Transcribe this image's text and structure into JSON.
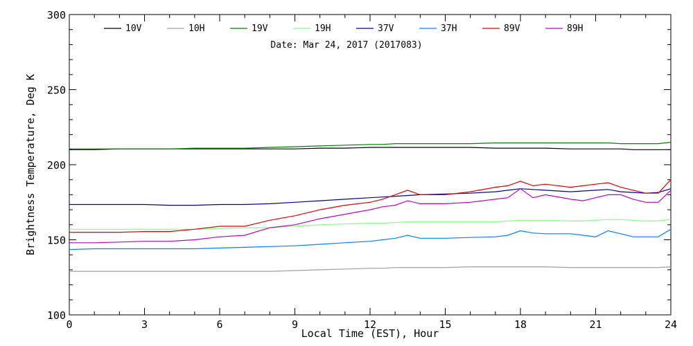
{
  "chart_data": {
    "type": "line",
    "title": "",
    "date_text": "Date: Mar 24, 2017 (2017083)",
    "xlabel": "Local Time (EST), Hour",
    "ylabel": "Brightness Temperature, Deg K",
    "xlim": [
      0,
      24
    ],
    "ylim": [
      100,
      300
    ],
    "x_ticks": [
      0,
      3,
      6,
      9,
      12,
      15,
      18,
      21,
      24
    ],
    "y_ticks": [
      100,
      150,
      200,
      250,
      300
    ],
    "grid": false,
    "legend_position": "top",
    "x": [
      0,
      1,
      2,
      3,
      4,
      5,
      6,
      7,
      8,
      9,
      10,
      11,
      12,
      12.5,
      13,
      13.5,
      14,
      15,
      16,
      17,
      17.5,
      18,
      18.5,
      19,
      20,
      20.5,
      21,
      21.5,
      22,
      22.5,
      23,
      23.5,
      24
    ],
    "series": [
      {
        "name": "10V",
        "color": "#000000",
        "values": [
          210,
          210,
          210.5,
          210.5,
          210.5,
          210.5,
          210.5,
          210.5,
          210.5,
          210.5,
          211,
          211,
          211.5,
          211.5,
          211.5,
          211.5,
          211.5,
          211.5,
          211.5,
          211,
          211,
          211,
          211,
          211,
          210.5,
          210.5,
          210.5,
          210.5,
          210.5,
          210,
          210,
          210,
          210
        ]
      },
      {
        "name": "10H",
        "color": "#a0a0a0",
        "values": [
          129,
          129,
          129,
          129,
          129,
          129,
          129,
          129,
          129,
          129.5,
          130,
          130.5,
          131,
          131,
          131.5,
          131.5,
          131.5,
          131.5,
          132,
          132,
          132,
          132,
          132,
          132,
          131.5,
          131.5,
          131.5,
          131.5,
          131.5,
          131.5,
          131.5,
          131.5,
          132
        ]
      },
      {
        "name": "19V",
        "color": "#008000",
        "values": [
          210.5,
          210.5,
          210.5,
          210.5,
          210.5,
          211,
          211,
          211,
          211.5,
          212,
          212.5,
          213,
          213.5,
          213.5,
          214,
          214,
          214,
          214,
          214,
          214.5,
          214.5,
          214.5,
          214.5,
          214.5,
          214.5,
          214.5,
          214.5,
          214.5,
          214,
          214,
          214,
          214,
          215
        ]
      },
      {
        "name": "19H",
        "color": "#80ff80",
        "values": [
          157,
          157,
          157,
          157,
          157,
          157,
          157.5,
          158,
          158,
          159,
          160,
          160.5,
          161,
          161,
          161.5,
          162,
          162,
          162,
          162,
          162,
          162.5,
          163,
          163,
          163,
          162.5,
          162.5,
          163,
          163.5,
          163.5,
          163,
          162.5,
          162.5,
          163.5
        ]
      },
      {
        "name": "37V",
        "color": "#0000a0",
        "values": [
          173.5,
          173.5,
          173.5,
          173.5,
          173,
          173,
          173.5,
          173.5,
          174,
          175,
          176,
          177,
          178,
          178.5,
          179,
          179.5,
          180,
          180.5,
          181,
          182,
          183,
          184,
          183.5,
          183,
          182,
          182.5,
          183,
          183.5,
          182,
          181.5,
          181,
          181.5,
          184
        ]
      },
      {
        "name": "37H",
        "color": "#0080ff",
        "values": [
          143.5,
          144,
          144,
          144,
          144,
          144,
          144.5,
          145,
          145.5,
          146,
          147,
          148,
          149,
          150,
          151,
          153,
          151,
          151,
          151.5,
          152,
          153,
          156,
          154.5,
          154,
          154,
          153,
          152,
          156,
          154,
          152,
          152,
          152,
          157
        ]
      },
      {
        "name": "89V",
        "color": "#e00000",
        "values": [
          155,
          155,
          155,
          155.5,
          155.5,
          157,
          159,
          159,
          163,
          166,
          170,
          173,
          175,
          177,
          180,
          183,
          180,
          180,
          182,
          185,
          186,
          189,
          186,
          187,
          185,
          186,
          187,
          188,
          185,
          183,
          181,
          181,
          190
        ]
      },
      {
        "name": "89H",
        "color": "#c000c0",
        "values": [
          148,
          148,
          148.5,
          149,
          149,
          150,
          152,
          153,
          158,
          160,
          164,
          167,
          170,
          172,
          173,
          176,
          174,
          174,
          175,
          177,
          178,
          184,
          178,
          180,
          177,
          176,
          178,
          180,
          180,
          177,
          175,
          175,
          183
        ]
      }
    ]
  }
}
